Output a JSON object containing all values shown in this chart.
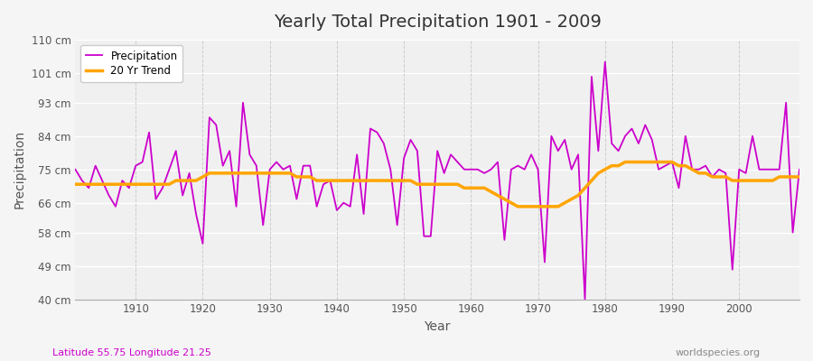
{
  "title": "Yearly Total Precipitation 1901 - 2009",
  "xlabel": "Year",
  "ylabel": "Precipitation",
  "subtitle_left": "Latitude 55.75 Longitude 21.25",
  "subtitle_right": "worldspecies.org",
  "bg_color": "#f5f5f5",
  "plot_bg_color": "#f0f0f0",
  "precip_color": "#cc00cc",
  "trend_color": "#ffa500",
  "ylim": [
    40,
    110
  ],
  "yticks": [
    40,
    49,
    58,
    66,
    75,
    84,
    93,
    101,
    110
  ],
  "ytick_labels": [
    "40 cm",
    "49 cm",
    "58 cm",
    "66 cm",
    "75 cm",
    "84 cm",
    "93 cm",
    "101 cm",
    "110 cm"
  ],
  "xticks": [
    1910,
    1920,
    1930,
    1940,
    1950,
    1960,
    1970,
    1980,
    1990,
    2000
  ],
  "years": [
    1901,
    1902,
    1903,
    1904,
    1905,
    1906,
    1907,
    1908,
    1909,
    1910,
    1911,
    1912,
    1913,
    1914,
    1915,
    1916,
    1917,
    1918,
    1919,
    1920,
    1921,
    1922,
    1923,
    1924,
    1925,
    1926,
    1927,
    1928,
    1929,
    1930,
    1931,
    1932,
    1933,
    1934,
    1935,
    1936,
    1937,
    1938,
    1939,
    1940,
    1941,
    1942,
    1943,
    1944,
    1945,
    1946,
    1947,
    1948,
    1949,
    1950,
    1951,
    1952,
    1953,
    1954,
    1955,
    1956,
    1957,
    1958,
    1959,
    1960,
    1961,
    1962,
    1963,
    1964,
    1965,
    1966,
    1967,
    1968,
    1969,
    1970,
    1971,
    1972,
    1973,
    1974,
    1975,
    1976,
    1977,
    1978,
    1979,
    1980,
    1981,
    1982,
    1983,
    1984,
    1985,
    1986,
    1987,
    1988,
    1989,
    1990,
    1991,
    1992,
    1993,
    1994,
    1995,
    1996,
    1997,
    1998,
    1999,
    2000,
    2001,
    2002,
    2003,
    2004,
    2005,
    2006,
    2007,
    2008,
    2009
  ],
  "precip": [
    75,
    72,
    70,
    76,
    72,
    68,
    65,
    72,
    70,
    76,
    77,
    85,
    67,
    70,
    75,
    80,
    68,
    74,
    63,
    55,
    89,
    87,
    76,
    80,
    65,
    93,
    79,
    76,
    60,
    75,
    77,
    75,
    76,
    67,
    76,
    76,
    65,
    71,
    72,
    64,
    66,
    65,
    79,
    63,
    86,
    85,
    82,
    75,
    60,
    78,
    83,
    80,
    57,
    57,
    80,
    74,
    79,
    77,
    75,
    75,
    75,
    74,
    75,
    77,
    56,
    75,
    76,
    75,
    79,
    75,
    50,
    84,
    80,
    83,
    75,
    79,
    40,
    100,
    80,
    104,
    82,
    80,
    84,
    86,
    82,
    87,
    83,
    75,
    76,
    77,
    70,
    84,
    75,
    75,
    76,
    73,
    75,
    74,
    48,
    75,
    74,
    84,
    75,
    75,
    75,
    75,
    93,
    58,
    75
  ],
  "trend": [
    71,
    71,
    71,
    71,
    71,
    71,
    71,
    71,
    71,
    71,
    71,
    71,
    71,
    71,
    71,
    72,
    72,
    72,
    72,
    73,
    74,
    74,
    74,
    74,
    74,
    74,
    74,
    74,
    74,
    74,
    74,
    74,
    74,
    73,
    73,
    73,
    72,
    72,
    72,
    72,
    72,
    72,
    72,
    72,
    72,
    72,
    72,
    72,
    72,
    72,
    72,
    71,
    71,
    71,
    71,
    71,
    71,
    71,
    70,
    70,
    70,
    70,
    69,
    68,
    67,
    66,
    65,
    65,
    65,
    65,
    65,
    65,
    65,
    66,
    67,
    68,
    70,
    72,
    74,
    75,
    76,
    76,
    77,
    77,
    77,
    77,
    77,
    77,
    77,
    77,
    76,
    76,
    75,
    74,
    74,
    73,
    73,
    73,
    72,
    72,
    72,
    72,
    72,
    72,
    72,
    73,
    73,
    73,
    73
  ]
}
